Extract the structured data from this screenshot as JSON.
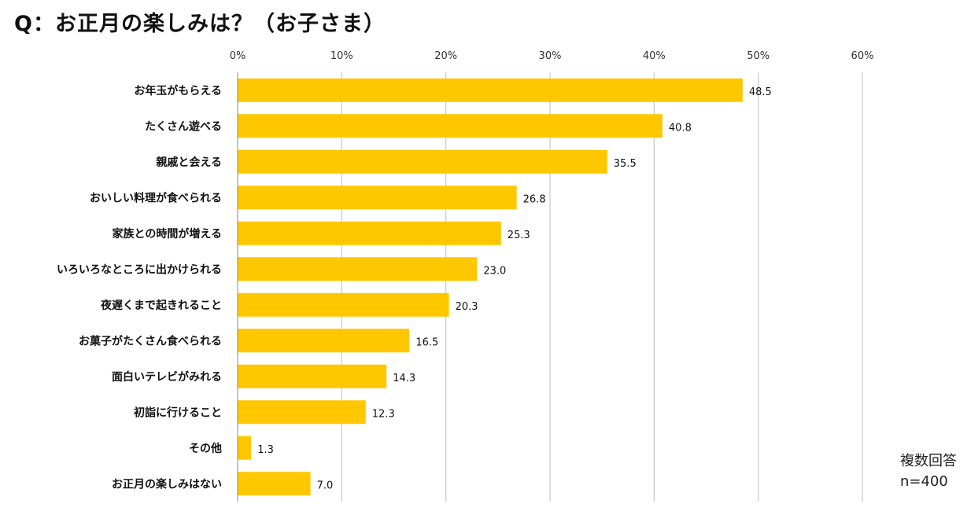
{
  "chart_data": {
    "type": "bar",
    "orientation": "horizontal",
    "title": "Q：お正月の楽しみは？（お子さま）",
    "categories": [
      "お年玉がもらえる",
      "たくさん遊べる",
      "親戚と会える",
      "おいしい料理が食べられる",
      "家族との時間が増える",
      "いろいろなところに出かけられる",
      "夜遅くまで起きれること",
      "お菓子がたくさん食べられる",
      "面白いテレビがみれる",
      "初詣に行けること",
      "その他",
      "お正月の楽しみはない"
    ],
    "values": [
      48.5,
      40.8,
      35.5,
      26.8,
      25.3,
      23.0,
      20.3,
      16.5,
      14.3,
      12.3,
      1.3,
      7.0
    ],
    "value_labels": [
      "48.5",
      "40.8",
      "35.5",
      "26.8",
      "25.3",
      "23.0",
      "20.3",
      "16.5",
      "14.3",
      "12.3",
      "1.3",
      "7.0"
    ],
    "xlim": [
      0,
      60
    ],
    "x_ticks": [
      "0%",
      "10%",
      "20%",
      "30%",
      "40%",
      "50%",
      "60%"
    ],
    "x_tick_values": [
      0,
      10,
      20,
      30,
      40,
      50,
      60
    ],
    "x_axis_position": "top",
    "grid": true,
    "bar_color": "#FFC700",
    "gridline_color": "#C8C8C8",
    "notes": [
      "複数回答",
      "n=400"
    ]
  }
}
